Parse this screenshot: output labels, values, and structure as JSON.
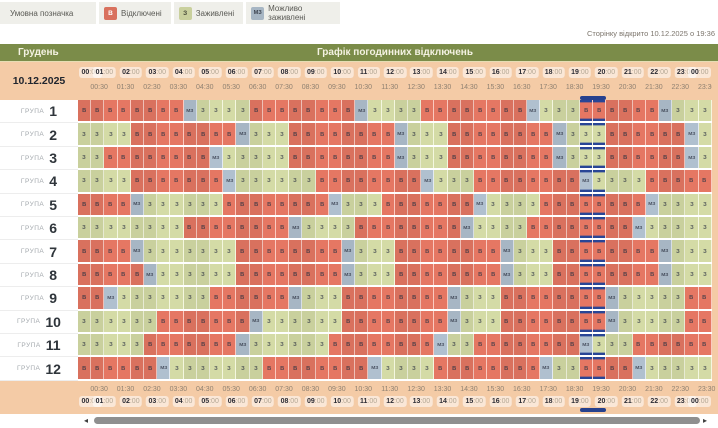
{
  "legend": {
    "title": "Умовна позначка",
    "items": [
      {
        "code": "В",
        "label": "Відключені",
        "color": "#d9715e"
      },
      {
        "code": "З",
        "label": "Заживлені",
        "color": "#c9d09d"
      },
      {
        "code": "МЗ",
        "label": "Можливо заживлені",
        "color": "#a7b6c4"
      }
    ]
  },
  "page_opened_note": "Сторінку відкрито 10.12.2025 о 19:36",
  "title_bar": {
    "month": "Грудень",
    "title": "Графік погодинних відключень"
  },
  "date": "10.12.2025",
  "time_axis": {
    "hours": [
      "00:00",
      "01:00",
      "02:00",
      "03:00",
      "04:00",
      "05:00",
      "06:00",
      "07:00",
      "08:00",
      "09:00",
      "10:00",
      "11:00",
      "12:00",
      "13:00",
      "14:00",
      "15:00",
      "16:00",
      "17:00",
      "18:00",
      "19:00",
      "20:00",
      "21:00",
      "22:00",
      "23:00",
      "00:00"
    ],
    "half_hours": [
      "00:30",
      "01:30",
      "02:30",
      "03:30",
      "04:30",
      "05:30",
      "06:30",
      "07:30",
      "08:30",
      "09:30",
      "10:30",
      "11:30",
      "12:30",
      "13:30",
      "14:30",
      "15:30",
      "16:30",
      "17:30",
      "18:30",
      "19:30",
      "20:30",
      "21:30",
      "22:30",
      "23:30"
    ]
  },
  "current_time": {
    "marker_cols": [
      38,
      39
    ],
    "marker_span": "19:00-20:00",
    "marker_color": "#26418e"
  },
  "group_label_prefix": "ГРУПА",
  "status_colors": {
    "В": "#d9715e",
    "З": "#c9d09d",
    "МЗ": "#a7b6c4"
  },
  "groups": [
    {
      "number": "1",
      "cells": [
        "В",
        "В",
        "В",
        "В",
        "В",
        "В",
        "В",
        "В",
        "МЗ",
        "З",
        "З",
        "З",
        "З",
        "В",
        "В",
        "В",
        "В",
        "В",
        "В",
        "В",
        "В",
        "МЗ",
        "З",
        "З",
        "З",
        "З",
        "В",
        "В",
        "В",
        "В",
        "В",
        "В",
        "В",
        "В",
        "МЗ",
        "З",
        "З",
        "З",
        "В",
        "В",
        "В",
        "В",
        "В",
        "В",
        "МЗ",
        "З",
        "З",
        "З"
      ]
    },
    {
      "number": "2",
      "cells": [
        "З",
        "З",
        "З",
        "З",
        "В",
        "В",
        "В",
        "В",
        "В",
        "В",
        "В",
        "В",
        "МЗ",
        "З",
        "З",
        "З",
        "В",
        "В",
        "В",
        "В",
        "В",
        "В",
        "В",
        "В",
        "МЗ",
        "З",
        "З",
        "З",
        "В",
        "В",
        "В",
        "В",
        "В",
        "В",
        "В",
        "В",
        "МЗ",
        "З",
        "З",
        "З",
        "В",
        "В",
        "В",
        "В",
        "В",
        "В",
        "МЗ",
        "З"
      ]
    },
    {
      "number": "3",
      "cells": [
        "З",
        "З",
        "В",
        "В",
        "В",
        "В",
        "В",
        "В",
        "В",
        "В",
        "МЗ",
        "З",
        "З",
        "З",
        "З",
        "З",
        "В",
        "В",
        "В",
        "В",
        "В",
        "В",
        "В",
        "В",
        "МЗ",
        "З",
        "З",
        "З",
        "В",
        "В",
        "В",
        "В",
        "В",
        "В",
        "В",
        "В",
        "МЗ",
        "З",
        "З",
        "З",
        "В",
        "В",
        "В",
        "В",
        "В",
        "В",
        "МЗ",
        "З"
      ]
    },
    {
      "number": "4",
      "cells": [
        "З",
        "З",
        "З",
        "З",
        "В",
        "В",
        "В",
        "В",
        "В",
        "В",
        "В",
        "МЗ",
        "З",
        "З",
        "З",
        "З",
        "З",
        "З",
        "В",
        "В",
        "В",
        "В",
        "В",
        "В",
        "В",
        "В",
        "МЗ",
        "З",
        "З",
        "З",
        "В",
        "В",
        "В",
        "В",
        "В",
        "В",
        "В",
        "В",
        "МЗ",
        "З",
        "З",
        "З",
        "З",
        "В",
        "В",
        "В",
        "В",
        "В"
      ]
    },
    {
      "number": "5",
      "cells": [
        "В",
        "В",
        "В",
        "В",
        "МЗ",
        "З",
        "З",
        "З",
        "З",
        "З",
        "З",
        "В",
        "В",
        "В",
        "В",
        "В",
        "В",
        "В",
        "В",
        "МЗ",
        "З",
        "З",
        "З",
        "В",
        "В",
        "В",
        "В",
        "В",
        "В",
        "В",
        "МЗ",
        "З",
        "З",
        "З",
        "З",
        "В",
        "В",
        "В",
        "В",
        "В",
        "В",
        "В",
        "В",
        "МЗ",
        "З",
        "З",
        "З",
        "З"
      ]
    },
    {
      "number": "6",
      "cells": [
        "З",
        "З",
        "З",
        "З",
        "З",
        "З",
        "З",
        "З",
        "В",
        "В",
        "В",
        "В",
        "В",
        "В",
        "В",
        "В",
        "МЗ",
        "З",
        "З",
        "З",
        "З",
        "В",
        "В",
        "В",
        "В",
        "В",
        "В",
        "В",
        "В",
        "МЗ",
        "З",
        "З",
        "З",
        "З",
        "В",
        "В",
        "В",
        "В",
        "В",
        "В",
        "В",
        "В",
        "МЗ",
        "З",
        "З",
        "З",
        "З",
        "З"
      ]
    },
    {
      "number": "7",
      "cells": [
        "В",
        "В",
        "В",
        "В",
        "МЗ",
        "З",
        "З",
        "З",
        "З",
        "З",
        "З",
        "З",
        "В",
        "В",
        "В",
        "В",
        "В",
        "В",
        "В",
        "В",
        "МЗ",
        "З",
        "З",
        "З",
        "В",
        "В",
        "В",
        "В",
        "В",
        "В",
        "В",
        "В",
        "МЗ",
        "З",
        "З",
        "З",
        "В",
        "В",
        "В",
        "В",
        "В",
        "В",
        "В",
        "В",
        "МЗ",
        "З",
        "З",
        "З"
      ]
    },
    {
      "number": "8",
      "cells": [
        "В",
        "В",
        "В",
        "В",
        "В",
        "МЗ",
        "З",
        "З",
        "З",
        "З",
        "З",
        "З",
        "В",
        "В",
        "В",
        "В",
        "В",
        "В",
        "В",
        "В",
        "МЗ",
        "З",
        "З",
        "З",
        "В",
        "В",
        "В",
        "В",
        "В",
        "В",
        "В",
        "В",
        "МЗ",
        "З",
        "З",
        "З",
        "В",
        "В",
        "В",
        "В",
        "В",
        "В",
        "В",
        "В",
        "МЗ",
        "З",
        "З",
        "З"
      ]
    },
    {
      "number": "9",
      "cells": [
        "В",
        "В",
        "МЗ",
        "З",
        "З",
        "З",
        "З",
        "З",
        "З",
        "З",
        "В",
        "В",
        "В",
        "В",
        "В",
        "В",
        "МЗ",
        "З",
        "З",
        "З",
        "В",
        "В",
        "В",
        "В",
        "В",
        "В",
        "В",
        "В",
        "МЗ",
        "З",
        "З",
        "З",
        "В",
        "В",
        "В",
        "В",
        "В",
        "В",
        "В",
        "В",
        "МЗ",
        "З",
        "З",
        "З",
        "З",
        "З",
        "В",
        "В"
      ]
    },
    {
      "number": "10",
      "cells": [
        "З",
        "З",
        "З",
        "З",
        "З",
        "З",
        "В",
        "В",
        "В",
        "В",
        "В",
        "В",
        "В",
        "МЗ",
        "З",
        "З",
        "З",
        "З",
        "З",
        "З",
        "В",
        "В",
        "В",
        "В",
        "В",
        "В",
        "В",
        "В",
        "МЗ",
        "З",
        "З",
        "З",
        "В",
        "В",
        "В",
        "В",
        "В",
        "В",
        "В",
        "В",
        "МЗ",
        "З",
        "З",
        "З",
        "З",
        "З",
        "В",
        "В"
      ]
    },
    {
      "number": "11",
      "cells": [
        "З",
        "З",
        "З",
        "З",
        "З",
        "В",
        "В",
        "В",
        "В",
        "В",
        "В",
        "В",
        "МЗ",
        "З",
        "З",
        "З",
        "З",
        "З",
        "З",
        "В",
        "В",
        "В",
        "В",
        "В",
        "В",
        "В",
        "В",
        "МЗ",
        "З",
        "З",
        "В",
        "В",
        "В",
        "В",
        "В",
        "В",
        "В",
        "В",
        "МЗ",
        "З",
        "З",
        "З",
        "В",
        "В",
        "В",
        "В",
        "В",
        "В"
      ]
    },
    {
      "number": "12",
      "cells": [
        "В",
        "В",
        "В",
        "В",
        "В",
        "В",
        "МЗ",
        "З",
        "З",
        "З",
        "З",
        "З",
        "З",
        "З",
        "В",
        "В",
        "В",
        "В",
        "В",
        "В",
        "В",
        "В",
        "МЗ",
        "З",
        "З",
        "З",
        "З",
        "В",
        "В",
        "В",
        "В",
        "В",
        "В",
        "В",
        "В",
        "МЗ",
        "З",
        "З",
        "В",
        "В",
        "В",
        "В",
        "МЗ",
        "З",
        "З",
        "З",
        "З",
        "З"
      ]
    }
  ],
  "scrollbar": {
    "left_arrow": "◂",
    "right_arrow": "▸"
  }
}
